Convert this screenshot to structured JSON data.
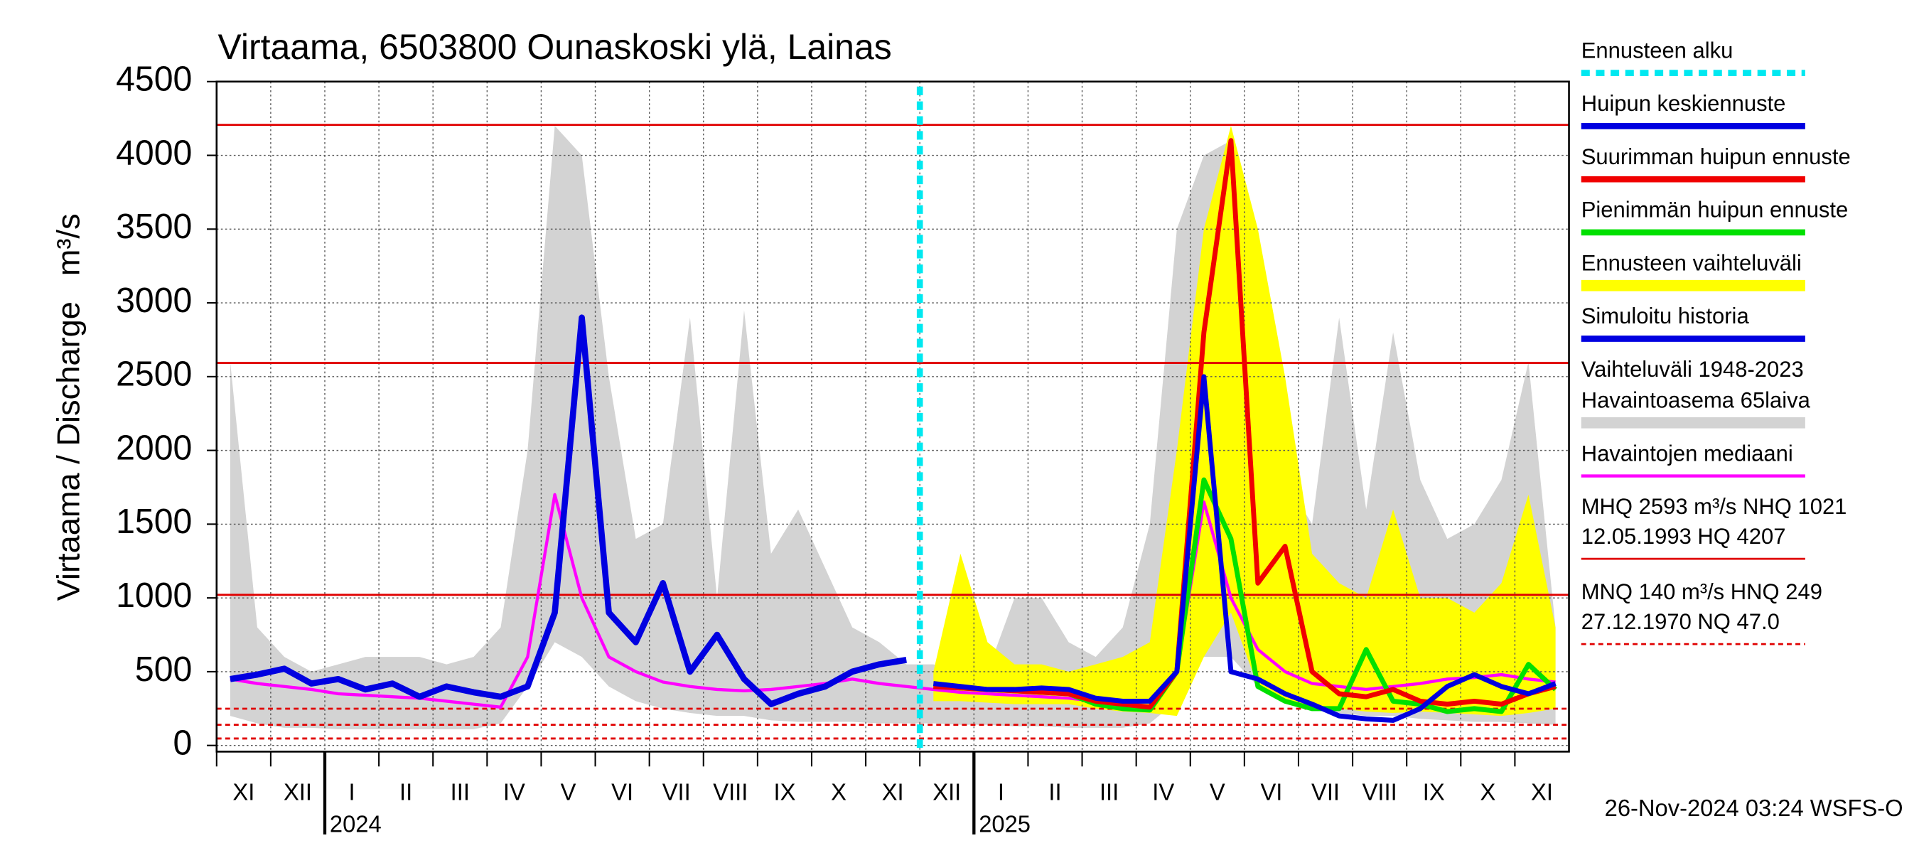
{
  "chart_data": {
    "type": "line",
    "title": "Virtaama, 6503800 Ounaskoski ylä, Lainas",
    "y_label": "Virtaama / Discharge",
    "y_unit": "m³/s",
    "footer": "26-Nov-2024 03:24 WSFS-O",
    "years": [
      "2024",
      "2025"
    ],
    "categories": [
      "XI",
      null,
      "XII",
      null,
      "I",
      null,
      "II",
      null,
      "III",
      null,
      "IV",
      null,
      "V",
      null,
      "VI",
      null,
      "VII",
      null,
      "VIII",
      null,
      "IX",
      null,
      "X",
      null,
      "XI",
      null,
      "XII",
      null,
      "I",
      null,
      "II",
      null,
      "III",
      null,
      "IV",
      null,
      "V",
      null,
      "VI",
      null,
      "VII",
      null,
      "VIII",
      null,
      "IX",
      null,
      "X",
      null,
      "XI",
      null
    ],
    "ylim": [
      0,
      4500
    ],
    "yticks": [
      0,
      500,
      1000,
      1500,
      2000,
      2500,
      3000,
      3500,
      4000,
      4500
    ],
    "grid": true,
    "series": [
      {
        "name": "Ennusteen alku",
        "color": "#00e8f0",
        "style": "vline"
      },
      {
        "name": "Huipun keskiennuste",
        "color": "#0000e0",
        "values": [
          null,
          null,
          null,
          null,
          null,
          null,
          null,
          null,
          null,
          null,
          null,
          null,
          null,
          null,
          null,
          null,
          null,
          null,
          null,
          null,
          null,
          null,
          null,
          null,
          null,
          null,
          420,
          400,
          380,
          380,
          390,
          380,
          320,
          300,
          300,
          500,
          2500,
          500,
          450,
          350,
          280,
          200,
          180,
          170,
          250,
          400,
          480,
          400,
          350,
          420
        ]
      },
      {
        "name": "Suurimman huipun ennuste",
        "color": "#f00000",
        "values": [
          null,
          null,
          null,
          null,
          null,
          null,
          null,
          null,
          null,
          null,
          null,
          null,
          null,
          null,
          null,
          null,
          null,
          null,
          null,
          null,
          null,
          null,
          null,
          null,
          null,
          null,
          400,
          390,
          380,
          370,
          360,
          350,
          300,
          280,
          260,
          500,
          2800,
          4100,
          1100,
          1350,
          500,
          350,
          330,
          380,
          300,
          280,
          300,
          280,
          350,
          400
        ]
      },
      {
        "name": "Pienimmän huipun ennuste",
        "color": "#00e000",
        "values": [
          null,
          null,
          null,
          null,
          null,
          null,
          null,
          null,
          null,
          null,
          null,
          null,
          null,
          null,
          null,
          null,
          null,
          null,
          null,
          null,
          null,
          null,
          null,
          null,
          null,
          null,
          400,
          390,
          380,
          370,
          360,
          350,
          280,
          250,
          240,
          500,
          1800,
          1400,
          400,
          300,
          250,
          250,
          650,
          300,
          280,
          230,
          250,
          230,
          550,
          380
        ]
      },
      {
        "name": "Ennusteen vaihteluväli",
        "color": "#ffff00",
        "style": "band",
        "values": [
          null,
          null,
          null,
          null,
          null,
          null,
          null,
          null,
          null,
          null,
          null,
          null,
          null,
          null,
          null,
          null,
          null,
          null,
          null,
          null,
          null,
          null,
          null,
          null,
          null,
          null,
          500,
          1300,
          700,
          550,
          550,
          500,
          550,
          600,
          700,
          2000,
          3500,
          4200,
          3500,
          2500,
          1300,
          1100,
          1000,
          1600,
          1000,
          1000,
          900,
          1100,
          1700,
          800
        ],
        "low": [
          null,
          null,
          null,
          null,
          null,
          null,
          null,
          null,
          null,
          null,
          null,
          null,
          null,
          null,
          null,
          null,
          null,
          null,
          null,
          null,
          null,
          null,
          null,
          null,
          null,
          null,
          300,
          300,
          290,
          280,
          280,
          280,
          250,
          230,
          220,
          200,
          600,
          900,
          400,
          300,
          250,
          250,
          230,
          220,
          230,
          220,
          210,
          200,
          220,
          250
        ]
      },
      {
        "name": "Simuloitu historia",
        "color": "#0000e0",
        "values": [
          450,
          480,
          520,
          420,
          450,
          380,
          420,
          330,
          400,
          360,
          330,
          400,
          900,
          2900,
          900,
          700,
          1100,
          500,
          750,
          450,
          280,
          350,
          400,
          500,
          550,
          580,
          null,
          null,
          null,
          null,
          null,
          null,
          null,
          null,
          null,
          null,
          null,
          null,
          null,
          null,
          null,
          null,
          null,
          null,
          null,
          null,
          null,
          null,
          null,
          null
        ]
      },
      {
        "name": [
          "Vaihteluväli 1948-2023",
          " Havaintoasema 65laiva"
        ],
        "color": "#d3d3d3",
        "style": "band",
        "values": [
          2600,
          800,
          600,
          500,
          550,
          600,
          600,
          600,
          550,
          600,
          800,
          2000,
          4200,
          4000,
          2500,
          1400,
          1500,
          2900,
          1000,
          2950,
          1300,
          1600,
          1200,
          800,
          700,
          550,
          550,
          500,
          500,
          1000,
          1000,
          700,
          600,
          800,
          1500,
          3500,
          4000,
          4100,
          2400,
          1800,
          1500,
          2900,
          1600,
          2800,
          1800,
          1400,
          1500,
          1800,
          2600,
          800
        ],
        "low": [
          200,
          150,
          120,
          120,
          110,
          110,
          110,
          110,
          110,
          110,
          150,
          400,
          700,
          600,
          400,
          300,
          250,
          220,
          200,
          200,
          170,
          160,
          160,
          160,
          150,
          150,
          150,
          140,
          140,
          130,
          130,
          120,
          120,
          120,
          150,
          300,
          600,
          600,
          400,
          300,
          250,
          220,
          200,
          200,
          180,
          170,
          160,
          160,
          150,
          140
        ]
      },
      {
        "name": "Havaintojen mediaani",
        "color": "#ff00ff",
        "values": [
          450,
          420,
          400,
          380,
          350,
          340,
          330,
          320,
          300,
          280,
          260,
          600,
          1700,
          1000,
          600,
          500,
          430,
          400,
          380,
          370,
          380,
          400,
          420,
          450,
          420,
          400,
          380,
          360,
          350,
          340,
          330,
          320,
          300,
          280,
          260,
          500,
          1650,
          1000,
          650,
          500,
          420,
          400,
          380,
          400,
          420,
          450,
          460,
          480,
          450,
          430
        ]
      }
    ],
    "reference_color": "#e00000",
    "reference_lines": [
      {
        "value": 4207,
        "style": "solid"
      },
      {
        "value": 2593,
        "style": "solid"
      },
      {
        "value": 1021,
        "style": "solid"
      },
      {
        "value": 249,
        "style": "dashed"
      },
      {
        "value": 140,
        "style": "dashed"
      },
      {
        "value": 47,
        "style": "dashed"
      }
    ],
    "reference_notes": [
      {
        "lines": [
          "MHQ 2593 m³/s NHQ 1021",
          "12.05.1993 HQ 4207"
        ],
        "style": "solid"
      },
      {
        "lines": [
          "MNQ  140 m³/s HNQ  249",
          "27.12.1970 NQ 47.0"
        ],
        "style": "dashed"
      }
    ]
  }
}
